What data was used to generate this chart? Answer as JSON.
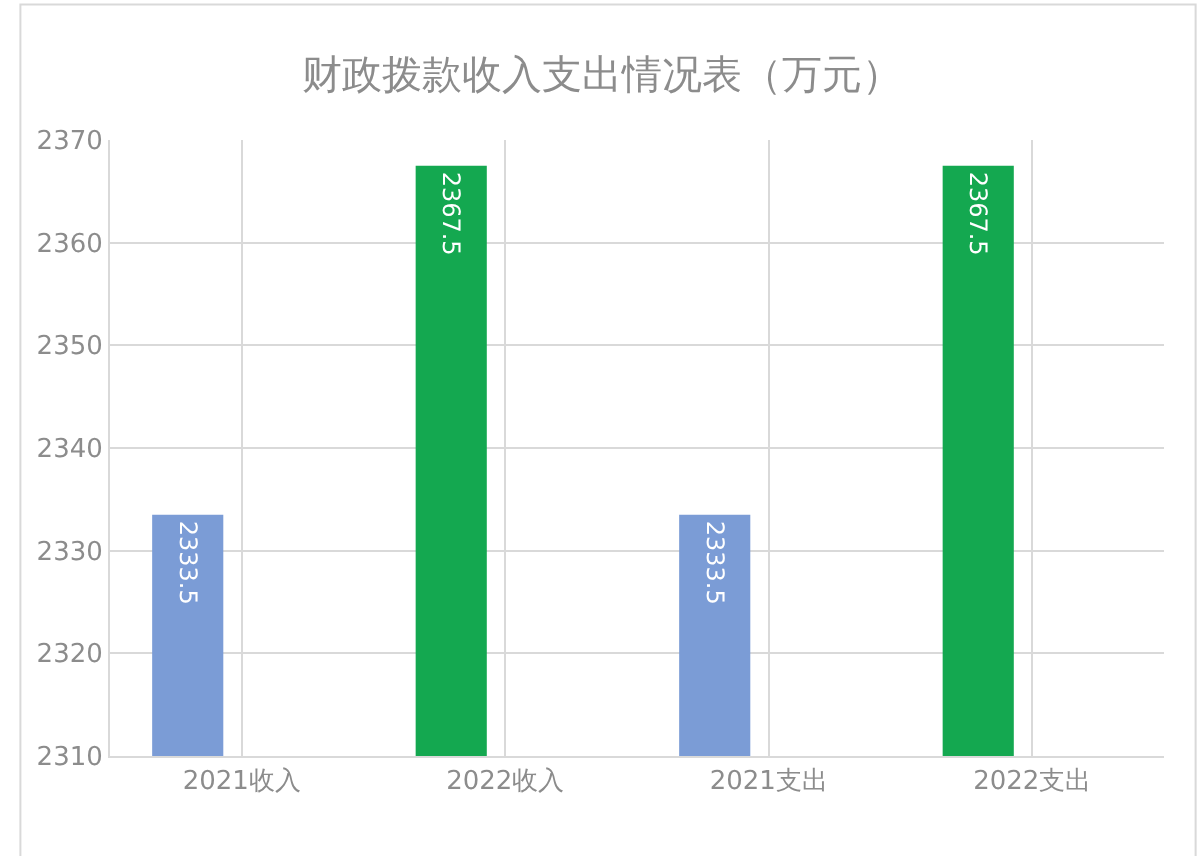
{
  "chart_data": {
    "type": "bar",
    "title": "财政拨款收入支出情况表（万元）",
    "categories": [
      "2021收入",
      "2022收入",
      "2021支出",
      "2022支出"
    ],
    "values": [
      2333.5,
      2367.5,
      2333.5,
      2367.5
    ],
    "colors": [
      "#7b9cd6",
      "#14a850",
      "#7b9cd6",
      "#14a850"
    ],
    "ylim": [
      2310,
      2370
    ],
    "yticks": [
      2310,
      2320,
      2330,
      2340,
      2350,
      2360,
      2370
    ],
    "grid": true,
    "data_labels": true
  }
}
